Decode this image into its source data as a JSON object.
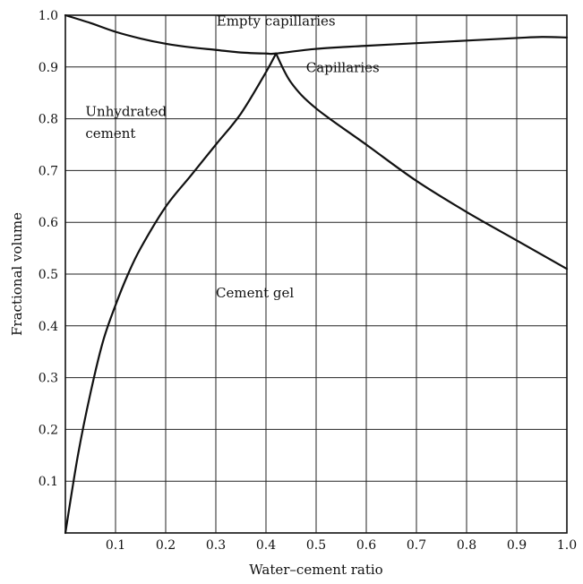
{
  "chart_data": {
    "type": "line",
    "title": "",
    "xlabel": "Water–cement ratio",
    "ylabel": "Fractional volume",
    "xlim": [
      0,
      1.0
    ],
    "ylim": [
      0,
      1.0
    ],
    "grid": true,
    "x_ticks": [
      "0.1",
      "0.2",
      "0.3",
      "0.4",
      "0.5",
      "0.6",
      "0.7",
      "0.8",
      "0.9",
      "1.0"
    ],
    "y_ticks": [
      "0.1",
      "0.2",
      "0.3",
      "0.4",
      "0.5",
      "0.6",
      "0.7",
      "0.8",
      "0.9",
      "1.0"
    ],
    "series": [
      {
        "points": [
          [
            0.0,
            1.0
          ],
          [
            0.05,
            0.985
          ],
          [
            0.1,
            0.968
          ],
          [
            0.15,
            0.955
          ],
          [
            0.2,
            0.945
          ],
          [
            0.25,
            0.938
          ],
          [
            0.3,
            0.933
          ],
          [
            0.35,
            0.928
          ],
          [
            0.4,
            0.926
          ],
          [
            0.42,
            0.926
          ],
          [
            0.5,
            0.935
          ],
          [
            0.6,
            0.941
          ],
          [
            0.7,
            0.946
          ],
          [
            0.8,
            0.951
          ],
          [
            0.9,
            0.956
          ],
          [
            0.95,
            0.958
          ],
          [
            1.0,
            0.957
          ]
        ]
      },
      {
        "points": [
          [
            0.0,
            0.0
          ],
          [
            0.025,
            0.15
          ],
          [
            0.05,
            0.27
          ],
          [
            0.075,
            0.37
          ],
          [
            0.1,
            0.44
          ],
          [
            0.125,
            0.5
          ],
          [
            0.15,
            0.55
          ],
          [
            0.2,
            0.63
          ],
          [
            0.25,
            0.69
          ],
          [
            0.3,
            0.75
          ],
          [
            0.35,
            0.81
          ],
          [
            0.4,
            0.89
          ],
          [
            0.42,
            0.926
          ]
        ]
      },
      {
        "points": [
          [
            0.42,
            0.926
          ],
          [
            0.45,
            0.87
          ],
          [
            0.5,
            0.82
          ],
          [
            0.6,
            0.75
          ],
          [
            0.7,
            0.68
          ],
          [
            0.8,
            0.62
          ],
          [
            0.9,
            0.565
          ],
          [
            1.0,
            0.51
          ]
        ]
      }
    ],
    "annotations": [
      {
        "text": "Empty capillaries",
        "x": 0.42,
        "y": 0.98
      },
      {
        "text": "Capillaries",
        "x": 0.48,
        "y": 0.89
      },
      {
        "text": "Unhydrated",
        "x": 0.04,
        "y": 0.805
      },
      {
        "text": "cement",
        "x": 0.04,
        "y": 0.763
      },
      {
        "text": "Cement gel",
        "x": 0.3,
        "y": 0.455
      }
    ]
  }
}
